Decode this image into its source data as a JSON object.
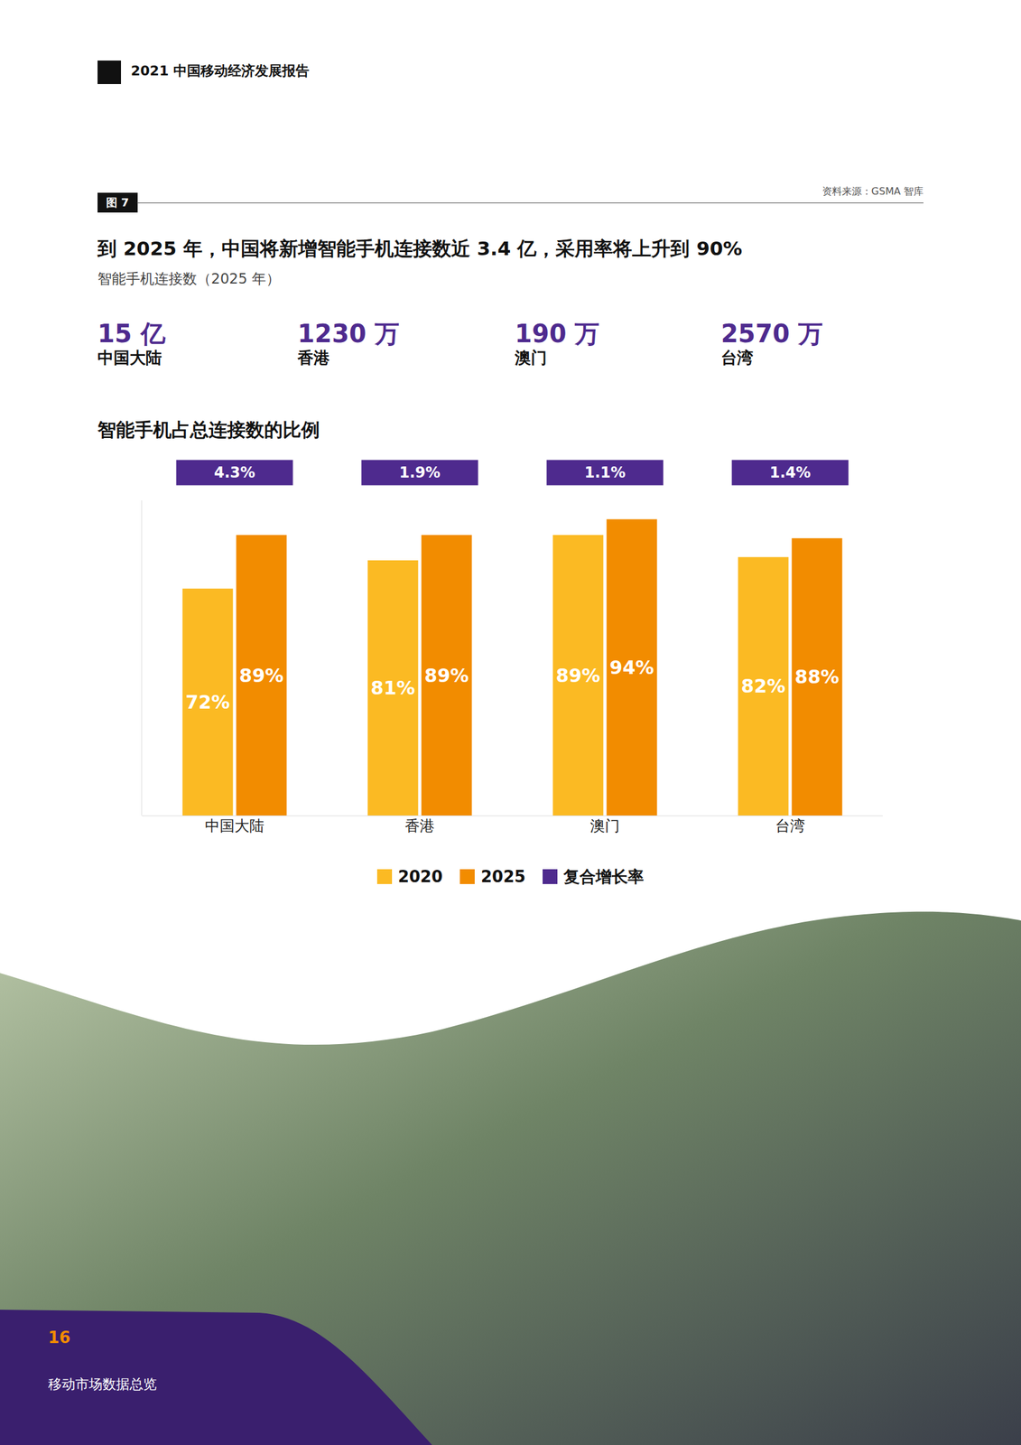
{
  "header": {
    "report": "2021 中国移动经济发展报告"
  },
  "figure": {
    "label": "图 7",
    "source": "资料来源：GSMA 智库",
    "title": "到 2025 年，中国将新增智能手机连接数近 3.4 亿，采用率将上升到 90%",
    "subtitle": "智能手机连接数（2025 年）",
    "stats": [
      {
        "value": "15 亿",
        "label": "中国大陆"
      },
      {
        "value": "1230 万",
        "label": "香港"
      },
      {
        "value": "190 万",
        "label": "澳门"
      },
      {
        "value": "2570 万",
        "label": "台湾"
      }
    ]
  },
  "chart_data": {
    "type": "bar",
    "title": "智能手机占总连接数的比例",
    "categories": [
      "中国大陆",
      "香港",
      "澳门",
      "台湾"
    ],
    "series": [
      {
        "name": "2020",
        "color": "#FBBA23",
        "values": [
          72,
          81,
          89,
          82
        ],
        "value_labels": [
          "72%",
          "81%",
          "89%",
          "82%"
        ]
      },
      {
        "name": "2025",
        "color": "#F28C00",
        "values": [
          89,
          89,
          94,
          88
        ],
        "value_labels": [
          "89%",
          "89%",
          "94%",
          "88%"
        ]
      },
      {
        "name": "复合增长率",
        "type": "label",
        "color": "#4E2A8E",
        "values": [
          4.3,
          1.9,
          1.1,
          1.4
        ],
        "value_labels": [
          "4.3%",
          "1.9%",
          "1.1%",
          "1.4%"
        ]
      }
    ],
    "ylim": [
      0,
      100
    ],
    "grid": false,
    "data_labels": true,
    "tick_labels": "x",
    "legend": "bottom"
  },
  "footer": {
    "page": "16",
    "section": "移动市场数据总览"
  }
}
